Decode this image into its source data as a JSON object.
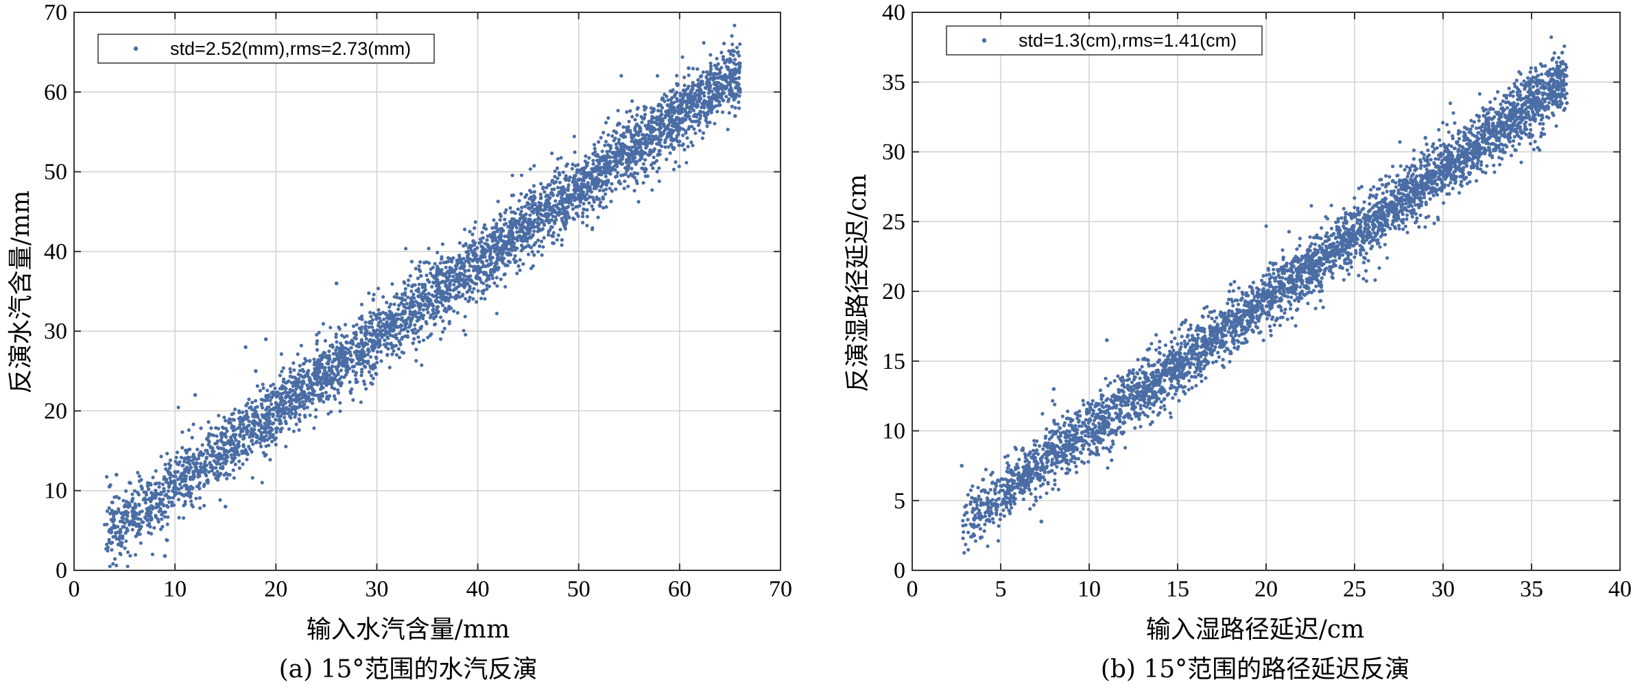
{
  "chart_data": [
    {
      "type": "scatter",
      "panel": "a",
      "xlabel": "输入水汽含量/mm",
      "ylabel": "反演水汽含量/mm",
      "caption": "(a) 15°范围的水汽反演",
      "xlim": [
        0,
        70
      ],
      "ylim": [
        0,
        70
      ],
      "xticks": [
        0,
        10,
        20,
        30,
        40,
        50,
        60,
        70
      ],
      "yticks": [
        0,
        10,
        20,
        30,
        40,
        50,
        60,
        70
      ],
      "grid": true,
      "legend_position": "top-left",
      "series": [
        {
          "name": "std=2.52(mm),rms=2.73(mm)",
          "color": "#4a6da5",
          "trend": {
            "slope": 0.93,
            "intercept": 1.4
          },
          "x_range": [
            3,
            66
          ],
          "spread": 2.5,
          "points": [
            [
              3.5,
              10.5
            ],
            [
              4.2,
              12.0
            ],
            [
              4.6,
              3.5
            ],
            [
              5.0,
              8.0
            ],
            [
              5.5,
              11.0
            ],
            [
              7.5,
              9.0
            ],
            [
              8.7,
              7.0
            ],
            [
              9.0,
              1.8
            ],
            [
              10.0,
              11.0
            ],
            [
              11.0,
              14.0
            ],
            [
              12.0,
              22.0
            ],
            [
              13.0,
              12.5
            ],
            [
              14.5,
              14.0
            ],
            [
              15.0,
              8.0
            ],
            [
              16.0,
              17.0
            ],
            [
              17.0,
              28.0
            ],
            [
              18.0,
              25.0
            ],
            [
              19.0,
              29.0
            ],
            [
              20.0,
              21.0
            ],
            [
              22.0,
              22.0
            ],
            [
              25.0,
              24.5
            ],
            [
              26.0,
              36.0
            ],
            [
              28.0,
              27.0
            ],
            [
              30.0,
              29.5
            ],
            [
              32.0,
              31.5
            ],
            [
              35.0,
              34.0
            ],
            [
              38.0,
              38.5
            ],
            [
              40.0,
              39.0
            ],
            [
              42.0,
              40.5
            ],
            [
              45.0,
              43.0
            ],
            [
              47.0,
              46.5
            ],
            [
              50.0,
              49.0
            ],
            [
              52.0,
              50.5
            ],
            [
              54.0,
              52.0
            ],
            [
              56.0,
              55.0
            ],
            [
              58.0,
              56.5
            ],
            [
              60.0,
              58.0
            ],
            [
              60.9,
              63.0
            ],
            [
              63.0,
              60.5
            ],
            [
              65.0,
              60.0
            ],
            [
              65.5,
              57.0
            ]
          ]
        }
      ]
    },
    {
      "type": "scatter",
      "panel": "b",
      "xlabel": "输入湿路径延迟/cm",
      "ylabel": "反演湿路径延迟/cm",
      "caption": "(b) 15°范围的路径延迟反演",
      "xlim": [
        0,
        40
      ],
      "ylim": [
        0,
        40
      ],
      "xticks": [
        0,
        5,
        10,
        15,
        20,
        25,
        30,
        35,
        40
      ],
      "yticks": [
        0,
        5,
        10,
        15,
        20,
        25,
        30,
        35,
        40
      ],
      "grid": true,
      "legend_position": "top-left",
      "series": [
        {
          "name": "std=1.3(cm),rms=1.41(cm)",
          "color": "#4a6da5",
          "trend": {
            "slope": 0.93,
            "intercept": 0.8
          },
          "x_range": [
            2.8,
            37
          ],
          "spread": 1.3,
          "points": [
            [
              2.8,
              7.5
            ],
            [
              3.5,
              2.5
            ],
            [
              4.0,
              6.5
            ],
            [
              5.0,
              4.0
            ],
            [
              6.0,
              6.5
            ],
            [
              7.0,
              5.0
            ],
            [
              7.3,
              3.5
            ],
            [
              8.0,
              13.0
            ],
            [
              10.0,
              9.0
            ],
            [
              11.0,
              16.5
            ],
            [
              12.0,
              11.0
            ],
            [
              13.0,
              12.5
            ],
            [
              14.0,
              13.5
            ],
            [
              15.0,
              14.5
            ],
            [
              16.0,
              15.5
            ],
            [
              17.0,
              17.0
            ],
            [
              18.0,
              20.5
            ],
            [
              19.0,
              18.5
            ],
            [
              20.0,
              19.5
            ],
            [
              21.0,
              20.5
            ],
            [
              22.0,
              21.5
            ],
            [
              24.0,
              23.0
            ],
            [
              25.0,
              24.0
            ],
            [
              27.0,
              26.0
            ],
            [
              28.0,
              27.5
            ],
            [
              29.0,
              31.0
            ],
            [
              30.0,
              29.0
            ],
            [
              32.0,
              30.5
            ],
            [
              33.0,
              31.5
            ],
            [
              34.0,
              32.5
            ],
            [
              35.0,
              33.5
            ],
            [
              35.5,
              35.0
            ],
            [
              36.5,
              34.0
            ],
            [
              37.0,
              33.5
            ]
          ]
        }
      ]
    }
  ]
}
